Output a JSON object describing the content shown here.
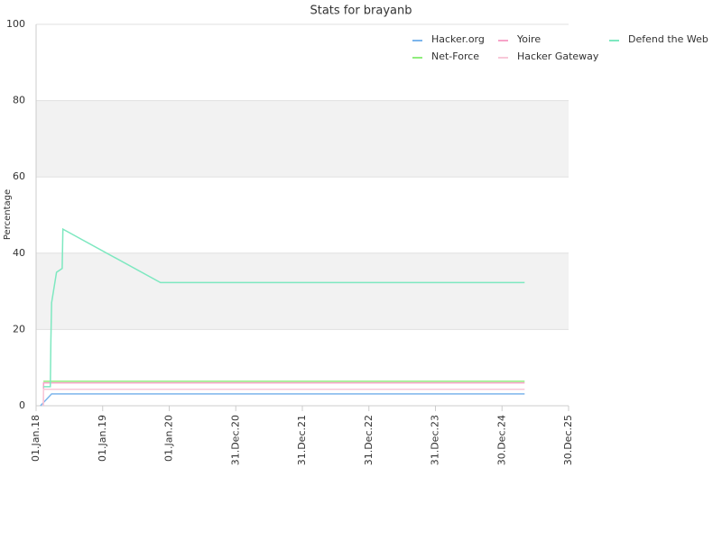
{
  "chart_data": {
    "type": "line",
    "title": "Stats for brayanb",
    "y_label": "Percentage",
    "xlim": [
      "2018-01-01",
      "2025-12-30"
    ],
    "xticks": [
      {
        "value": "2018-01-01",
        "label": "01.Jan.18"
      },
      {
        "value": "2019-01-01",
        "label": "01.Jan.19"
      },
      {
        "value": "2020-01-01",
        "label": "01.Jan.20"
      },
      {
        "value": "2020-12-31",
        "label": "31.Dec.20"
      },
      {
        "value": "2021-12-31",
        "label": "31.Dec.21"
      },
      {
        "value": "2022-12-31",
        "label": "31.Dec.22"
      },
      {
        "value": "2023-12-31",
        "label": "31.Dec.23"
      },
      {
        "value": "2024-12-30",
        "label": "30.Dec.24"
      },
      {
        "value": "2025-12-30",
        "label": "30.Dec.25"
      }
    ],
    "ylim": [
      0,
      100
    ],
    "yticks": [
      0,
      20,
      40,
      60,
      80,
      100
    ],
    "grid": true,
    "series": [
      {
        "name": "Hacker.org",
        "color": "#7cb5ec",
        "x": [
          "2018-01-25",
          "2018-03-27",
          "2025-05-03"
        ],
        "values": [
          0,
          3.1,
          3.1
        ]
      },
      {
        "name": "Net-Force",
        "color": "#90ed7d",
        "x": [
          "2018-02-10",
          "2025-05-03"
        ],
        "values": [
          6.4,
          6.4
        ]
      },
      {
        "name": "Yoire",
        "color": "#f7a3c8",
        "x": [
          "2018-02-10",
          "2018-02-11",
          "2025-05-03"
        ],
        "values": [
          0,
          6,
          6
        ]
      },
      {
        "name": "Hacker Gateway",
        "color": "#f8c8d8",
        "x": [
          "2018-02-10",
          "2018-02-11",
          "2025-05-03"
        ],
        "values": [
          0,
          4.3,
          4.3
        ]
      },
      {
        "name": "Defend the Web",
        "color": "#7ee8c0",
        "x": [
          "2018-02-10",
          "2018-03-20",
          "2018-03-23",
          "2018-03-27",
          "2018-04-23",
          "2018-05-24",
          "2018-05-28",
          "2019-11-14",
          "2025-05-03"
        ],
        "values": [
          5,
          5,
          17,
          27,
          35,
          36,
          46.3,
          32.3,
          32.3
        ]
      }
    ]
  }
}
